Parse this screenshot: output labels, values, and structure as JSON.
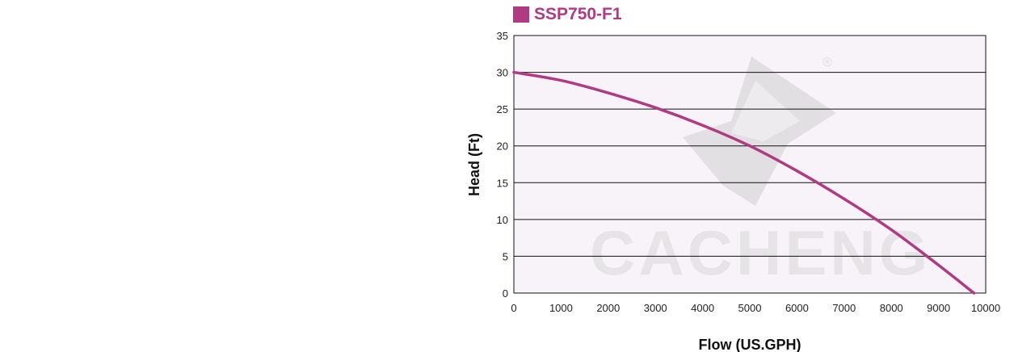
{
  "chart_data": {
    "type": "line",
    "title": "SSP750-F1",
    "xlabel": "Flow (US.GPH)",
    "ylabel": "Head (Ft)",
    "xlim": [
      0,
      10000
    ],
    "ylim": [
      0,
      35
    ],
    "xticks": [
      "0",
      "1000",
      "2000",
      "3000",
      "4000",
      "5000",
      "6000",
      "7000",
      "8000",
      "9000",
      "10000"
    ],
    "yticks": [
      "0",
      "5",
      "10",
      "15",
      "20",
      "25",
      "30",
      "35"
    ],
    "grid": "horizontal",
    "series": [
      {
        "name": "SSP750-F1",
        "color": "#b03a84",
        "x": [
          0,
          1000,
          2000,
          3000,
          4000,
          5000,
          6000,
          7000,
          8000,
          9000,
          9750
        ],
        "y": [
          30,
          28.9,
          27.2,
          25.2,
          22.8,
          20,
          16.6,
          12.8,
          8.6,
          3.8,
          0
        ]
      }
    ],
    "legend_position": "top-left",
    "watermark": "CACHENG"
  },
  "colors": {
    "plot_background": "#f8f3f8",
    "grid": "#111111",
    "axis": "#111111"
  }
}
